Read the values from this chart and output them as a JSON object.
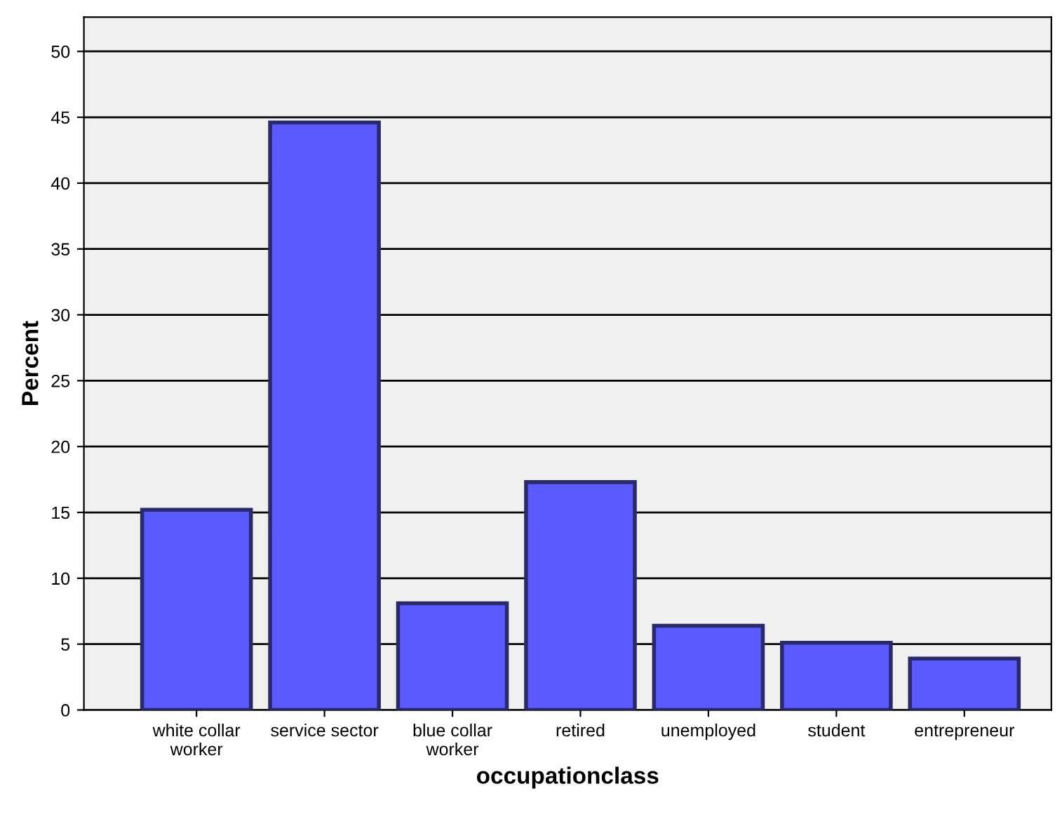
{
  "chart_data": {
    "type": "bar",
    "xlabel": "occupationclass",
    "ylabel": "Percent",
    "categories": [
      "white collar\nworker",
      "service sector",
      "blue collar\nworker",
      "retired",
      "unemployed",
      "student",
      "entrepreneur"
    ],
    "values": [
      15.2,
      44.6,
      8.1,
      17.3,
      6.4,
      5.1,
      3.9
    ],
    "color": "#5a5aff",
    "ylim": [
      0,
      52.6
    ],
    "yticks": [
      0,
      5,
      10,
      15,
      20,
      25,
      30,
      35,
      40,
      45,
      50
    ],
    "grid": "y",
    "legend": false
  }
}
